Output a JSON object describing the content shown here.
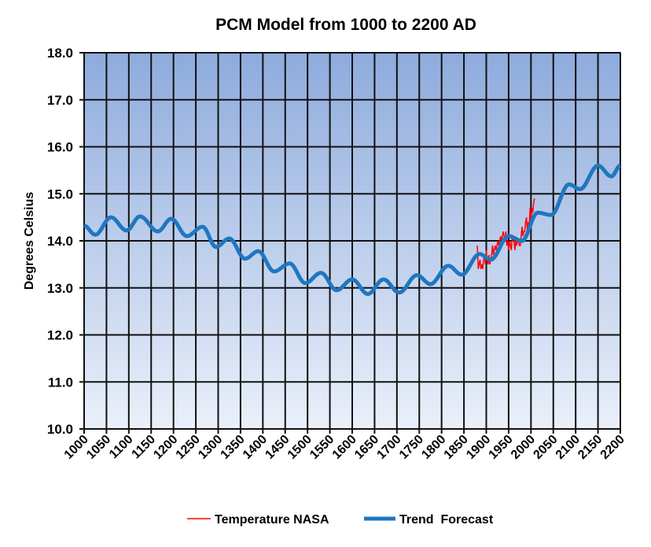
{
  "chart_data": {
    "type": "line",
    "title": "PCM Model from 1000 to 2200 AD",
    "xlabel": "",
    "ylabel": "Degrees Celsius",
    "xlim": [
      1000,
      2200
    ],
    "ylim": [
      10.0,
      18.0
    ],
    "grid": true,
    "legend_position": "bottom",
    "x_ticks": [
      "1000",
      "1050",
      "1100",
      "1150",
      "1200",
      "1250",
      "1300",
      "1350",
      "1400",
      "1450",
      "1500",
      "1550",
      "1600",
      "1650",
      "1700",
      "1750",
      "1800",
      "1850",
      "1900",
      "1950",
      "2000",
      "2050",
      "2100",
      "2150",
      "2200"
    ],
    "y_ticks": [
      "10.0",
      "11.0",
      "12.0",
      "13.0",
      "14.0",
      "15.0",
      "16.0",
      "17.0",
      "18.0"
    ],
    "colors": {
      "plot_bg_top": "#8eabdd",
      "plot_bg_bottom": "#eaf0fa",
      "Temperature NASA": "#ff0000",
      "Trend  Forecast": "#1f77c0"
    },
    "series": [
      {
        "name": "Temperature NASA",
        "x": [
          1880,
          1882,
          1884,
          1886,
          1888,
          1890,
          1892,
          1894,
          1896,
          1898,
          1900,
          1902,
          1904,
          1906,
          1908,
          1910,
          1912,
          1914,
          1916,
          1918,
          1920,
          1922,
          1924,
          1926,
          1928,
          1930,
          1932,
          1934,
          1936,
          1938,
          1940,
          1942,
          1944,
          1946,
          1948,
          1950,
          1952,
          1954,
          1956,
          1958,
          1960,
          1962,
          1964,
          1966,
          1968,
          1970,
          1972,
          1974,
          1976,
          1978,
          1980,
          1982,
          1984,
          1986,
          1988,
          1990,
          1992,
          1994,
          1996,
          1998,
          2000,
          2002,
          2004,
          2006,
          2008
        ],
        "y": [
          13.9,
          13.4,
          13.5,
          13.6,
          13.4,
          13.5,
          13.4,
          13.6,
          13.7,
          13.5,
          13.8,
          13.6,
          13.5,
          13.7,
          13.5,
          13.6,
          13.7,
          13.9,
          13.7,
          13.8,
          13.9,
          13.8,
          13.9,
          14.0,
          13.9,
          14.0,
          14.1,
          14.0,
          14.1,
          14.2,
          14.1,
          14.0,
          14.2,
          13.9,
          14.0,
          13.8,
          14.0,
          13.9,
          13.8,
          14.1,
          14.0,
          14.0,
          13.8,
          14.0,
          13.9,
          14.0,
          14.0,
          13.9,
          13.9,
          14.1,
          14.3,
          14.1,
          14.2,
          14.2,
          14.4,
          14.5,
          14.2,
          14.4,
          14.3,
          14.7,
          14.4,
          14.7,
          14.6,
          14.8,
          14.9
        ]
      },
      {
        "name": "Trend  Forecast",
        "x": [
          1000,
          1025,
          1060,
          1095,
          1125,
          1165,
          1195,
          1230,
          1265,
          1295,
          1325,
          1360,
          1390,
          1425,
          1460,
          1495,
          1530,
          1565,
          1600,
          1635,
          1670,
          1705,
          1745,
          1775,
          1815,
          1845,
          1885,
          1910,
          1950,
          1980,
          2015,
          2045,
          2085,
          2110,
          2150,
          2180,
          2200
        ],
        "y": [
          14.32,
          14.13,
          14.5,
          14.22,
          14.52,
          14.2,
          14.47,
          14.1,
          14.3,
          13.87,
          14.05,
          13.62,
          13.78,
          13.35,
          13.52,
          13.1,
          13.32,
          12.95,
          13.18,
          12.87,
          13.18,
          12.9,
          13.27,
          13.08,
          13.47,
          13.28,
          13.72,
          13.6,
          14.1,
          14.0,
          14.6,
          14.55,
          15.2,
          15.1,
          15.6,
          15.37,
          15.6
        ]
      }
    ]
  }
}
